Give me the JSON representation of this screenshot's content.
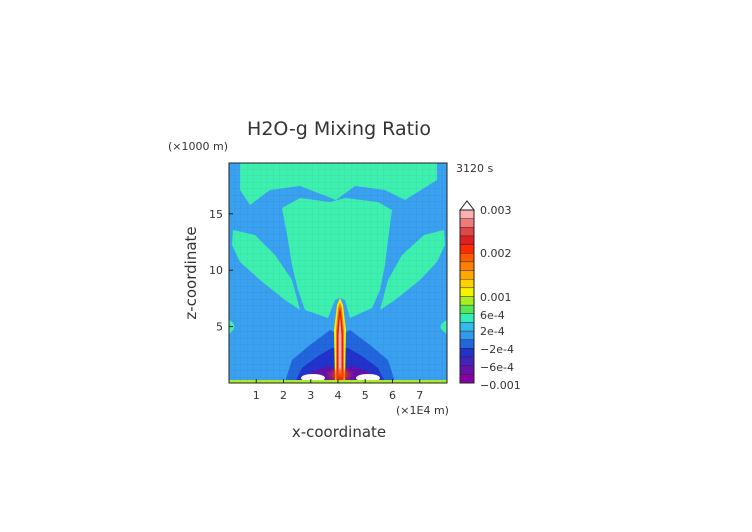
{
  "chart_data": {
    "type": "heatmap",
    "title": "H2O-g Mixing Ratio",
    "time_label": "3120 s",
    "xlabel": "x-coordinate",
    "ylabel": "z-coordinate",
    "x_unit": "(×1E4 m)",
    "y_unit": "(×1000 m)",
    "xlim": [
      0,
      8
    ],
    "ylim": [
      0,
      19.5
    ],
    "x_ticks": [
      "1",
      "2",
      "3",
      "4",
      "5",
      "6",
      "7"
    ],
    "y_ticks": [
      "5",
      "10",
      "15"
    ],
    "colorbar": {
      "labels": [
        "0.003",
        "0.002",
        "0.001",
        "6e-4",
        "2e-4",
        "−2e-4",
        "−6e-4",
        "−0.001"
      ],
      "colors": [
        "#f8b0b0",
        "#f07a7a",
        "#e04848",
        "#e02020",
        "#ff2a00",
        "#ff5a00",
        "#ff8000",
        "#ffa800",
        "#ffd000",
        "#f4f400",
        "#aaee22",
        "#55e655",
        "#33eebb",
        "#33bbee",
        "#3399ee",
        "#2266dd",
        "#2233cc",
        "#4422bb",
        "#6611aa",
        "#8800aa"
      ]
    }
  }
}
